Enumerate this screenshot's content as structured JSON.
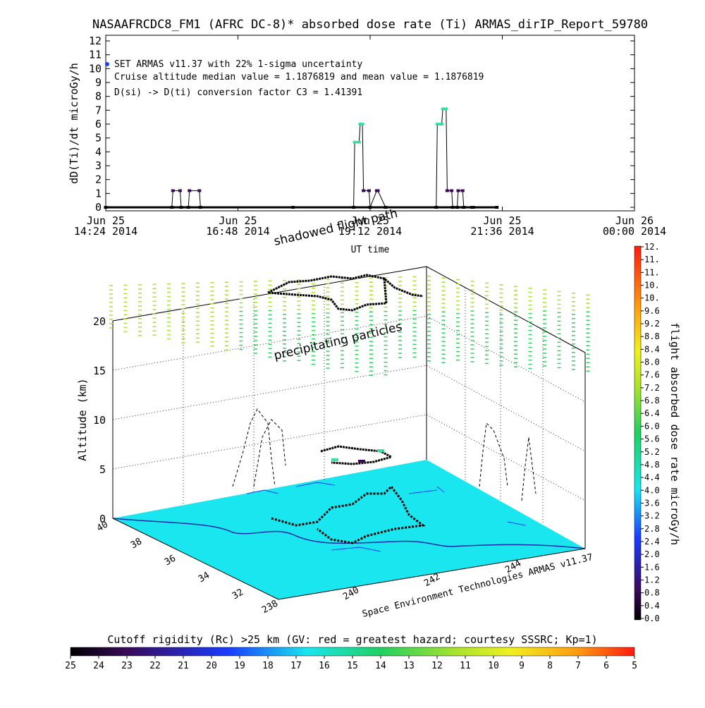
{
  "title": "NASAAFRCDC8_FM1 (AFRC DC-8)* absorbed dose rate (Ti) ARMAS_dirIP_Report_59780",
  "colors": {
    "trace": "#000000",
    "low_marker": "#3a0a5a",
    "high_marker": "#38e0a0",
    "ground": "#19e6ee",
    "particles": "#a6e22e",
    "blue_dot": "#1a3cff"
  },
  "top_panel": {
    "ylabel": "dD(Ti)/dt microGy/h",
    "xlabel": "UT time",
    "annotations": [
      "SET ARMAS v11.37 with 22% 1-sigma uncertainty",
      "Cruise altitude median value = 1.1876819 and mean value = 1.1876819",
      "D(si) -> D(ti) conversion factor C3 = 1.41391"
    ],
    "y_ticks": [
      "0",
      "1",
      "2",
      "3",
      "4",
      "5",
      "6",
      "7",
      "8",
      "9",
      "10",
      "11",
      "12"
    ],
    "x_ticks": [
      {
        "l1": "Jun 25",
        "l2": "14:24 2014"
      },
      {
        "l1": "Jun 25",
        "l2": "16:48 2014"
      },
      {
        "l1": "Jun 25",
        "l2": "19:12 2014"
      },
      {
        "l1": "Jun 25",
        "l2": "21:36 2014"
      },
      {
        "l1": "Jun 26",
        "l2": "00:00 2014"
      }
    ]
  },
  "panel3d": {
    "altitude_label": "Altitude (km)",
    "alt_ticks": [
      "0",
      "5",
      "10",
      "15",
      "20"
    ],
    "lat_ticks": [
      "40",
      "38",
      "36",
      "34",
      "32"
    ],
    "lon_ticks": [
      "238",
      "240",
      "242",
      "244"
    ],
    "credit": "Space Environment Technologies ARMAS v11.37",
    "text_shadowed": "shadowed flight path",
    "text_precip": "precipitating particles"
  },
  "right_colorbar": {
    "label": "flight absorbed dose rate microGy/h",
    "ticks": [
      "0.0",
      "0.4",
      "0.8",
      "1.2",
      "1.6",
      "2.0",
      "2.4",
      "2.8",
      "3.2",
      "3.6",
      "4.0",
      "4.4",
      "4.8",
      "5.2",
      "5.6",
      "6.0",
      "6.4",
      "6.8",
      "7.2",
      "7.6",
      "8.0",
      "8.4",
      "8.8",
      "9.2",
      "9.6",
      "10.",
      "10.",
      "11.",
      "11.",
      "12."
    ]
  },
  "bottom_colorbar": {
    "label": "Cutoff rigidity (Rc) >25 km (GV: red = greatest hazard; courtesy SSSRC; Kp=1)",
    "ticks": [
      "25",
      "24",
      "23",
      "22",
      "21",
      "20",
      "19",
      "18",
      "17",
      "16",
      "15",
      "14",
      "13",
      "12",
      "11",
      "10",
      "9",
      "8",
      "7",
      "6",
      "5"
    ]
  },
  "chart_data": {
    "type": "line",
    "title": "NASAAFRCDC8_FM1 (AFRC DC-8)* absorbed dose rate (Ti) ARMAS_dirIP_Report_59780",
    "xlabel": "UT time",
    "ylabel": "dD(Ti)/dt microGy/h",
    "ylim": [
      0,
      12
    ],
    "xlim": [
      "2014-06-25 14:24",
      "2014-06-26 00:00"
    ],
    "grid": false,
    "series": [
      {
        "values_hours": [
          14.4,
          15.6,
          15.62,
          15.75,
          15.77,
          15.9,
          15.92,
          16.1,
          16.12,
          17.8,
          18.9,
          18.92,
          19.0,
          19.02,
          19.06,
          19.08,
          19.18,
          19.2,
          19.32,
          19.34,
          19.48,
          20.4,
          20.42,
          20.5,
          20.52,
          20.58,
          20.6,
          20.68,
          20.7,
          20.78,
          20.8,
          20.88,
          20.9,
          21.05,
          21.07,
          21.5
        ],
        "x": [
          "14:24",
          "15:36",
          "15:37",
          "15:45",
          "15:46",
          "15:54",
          "15:55",
          "16:06",
          "16:07",
          "17:48",
          "18:54",
          "18:55",
          "19:00",
          "19:01",
          "19:04",
          "19:05",
          "19:11",
          "19:12",
          "19:19",
          "19:20",
          "19:29",
          "20:24",
          "20:25",
          "20:30",
          "20:31",
          "20:35",
          "20:36",
          "20:41",
          "20:42",
          "20:47",
          "20:48",
          "20:53",
          "20:54",
          "21:03",
          "21:04",
          "21:30"
        ],
        "y": [
          0,
          0,
          1.2,
          1.2,
          0,
          0,
          1.2,
          1.2,
          0,
          0,
          0,
          4.7,
          4.7,
          6.0,
          6.0,
          1.2,
          1.2,
          0,
          1.2,
          1.2,
          0,
          0,
          6.0,
          6.0,
          7.1,
          7.1,
          1.2,
          1.2,
          0,
          0,
          1.2,
          1.2,
          0,
          0,
          0,
          0
        ]
      }
    ]
  }
}
